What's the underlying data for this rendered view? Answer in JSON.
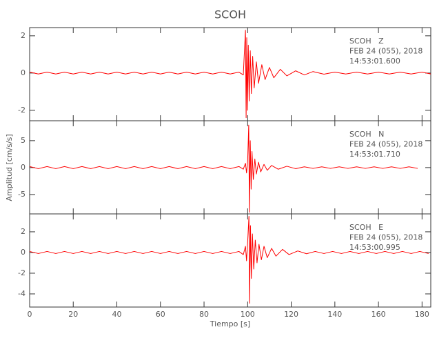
{
  "chart_data": [
    {
      "type": "line",
      "title": "SCOH",
      "annotations": [
        "SCOH   Z",
        "FEB 24 (055), 2018",
        "14:53:01.600"
      ],
      "x": [
        0,
        4,
        8,
        12,
        16,
        20,
        24,
        28,
        32,
        36,
        40,
        44,
        48,
        52,
        56,
        60,
        64,
        68,
        72,
        76,
        80,
        84,
        88,
        92,
        96,
        98,
        99,
        99.3,
        99.6,
        99.9,
        100.3,
        100.7,
        101.2,
        101.7,
        102.3,
        103,
        104,
        105,
        106.5,
        108,
        110,
        112,
        115,
        118,
        122,
        126,
        130,
        135,
        140,
        145,
        150,
        155,
        160,
        165,
        170,
        175,
        180,
        184
      ],
      "series": [
        {
          "color": "#ff0000",
          "values": [
            0.05,
            -0.05,
            0.05,
            -0.05,
            0.05,
            -0.05,
            0.05,
            -0.05,
            0.05,
            -0.05,
            0.05,
            -0.05,
            0.05,
            -0.05,
            0.05,
            -0.05,
            0.05,
            -0.05,
            0.05,
            -0.05,
            0.05,
            -0.05,
            0.05,
            -0.05,
            0.05,
            -0.1,
            2.3,
            -2.4,
            1.9,
            -2.0,
            1.5,
            -1.5,
            1.2,
            -1.1,
            0.9,
            -0.8,
            0.6,
            -0.55,
            0.45,
            -0.35,
            0.3,
            -0.25,
            0.2,
            -0.15,
            0.12,
            -0.1,
            0.08,
            -0.06,
            0.05,
            -0.05,
            0.05,
            -0.05,
            0.05,
            -0.05,
            0.05,
            -0.05,
            0.05,
            -0.05
          ]
        }
      ],
      "xlim": [
        0,
        184
      ],
      "ylim": [
        -2.56,
        2.44
      ],
      "yticks": [
        2,
        0,
        -2
      ]
    },
    {
      "type": "line",
      "ylabel": "Amplitud [cm/s/s]",
      "annotations": [
        "SCOH   N",
        "FEB 24 (055), 2018",
        "14:53:01.710"
      ],
      "x": [
        0,
        4,
        8,
        12,
        16,
        20,
        24,
        28,
        32,
        36,
        40,
        44,
        48,
        52,
        56,
        60,
        64,
        68,
        72,
        76,
        80,
        84,
        88,
        92,
        96,
        98,
        99,
        99.5,
        100,
        100.5,
        100.8,
        101.2,
        101.6,
        102,
        102.6,
        103.3,
        104,
        105,
        106,
        107.5,
        109,
        111,
        114,
        118,
        122,
        126,
        130,
        134,
        138,
        142,
        146,
        150,
        154,
        158,
        162,
        166,
        170,
        174,
        178
      ],
      "series": [
        {
          "color": "#ff0000",
          "values": [
            0.2,
            -0.2,
            0.2,
            -0.2,
            0.2,
            -0.2,
            0.2,
            -0.2,
            0.2,
            -0.2,
            0.2,
            -0.2,
            0.2,
            -0.2,
            0.2,
            -0.2,
            0.2,
            -0.2,
            0.2,
            -0.2,
            0.2,
            -0.2,
            0.2,
            -0.2,
            0.2,
            -0.3,
            0.8,
            -1.0,
            1.2,
            7.9,
            -8.3,
            5,
            -4,
            3,
            -2.2,
            1.6,
            -1.2,
            1.0,
            -0.8,
            0.6,
            -0.5,
            0.4,
            -0.3,
            0.25,
            -0.2,
            0.15,
            -0.15,
            0.15,
            -0.15,
            0.15,
            -0.15,
            0.15,
            -0.15,
            0.15,
            -0.15,
            0.15,
            -0.15,
            0.15,
            -0.15
          ]
        }
      ],
      "xlim": [
        0,
        184
      ],
      "ylim": [
        -8.6,
        8.7
      ],
      "yticks": [
        5,
        0,
        -5
      ]
    },
    {
      "type": "line",
      "xlabel": "Tiempo [s]",
      "annotations": [
        "SCOH   E",
        "FEB 24 (055), 2018",
        "14:53:00.995"
      ],
      "x": [
        0,
        4,
        8,
        12,
        16,
        20,
        24,
        28,
        32,
        36,
        40,
        44,
        48,
        52,
        56,
        60,
        64,
        68,
        72,
        76,
        80,
        84,
        88,
        92,
        96,
        98,
        99,
        99.5,
        100,
        100.6,
        100.9,
        101.3,
        101.7,
        102.2,
        102.8,
        103.5,
        104.3,
        105.2,
        106.3,
        107.5,
        109,
        111,
        113,
        116,
        119,
        123,
        127,
        131,
        135,
        139,
        143,
        147,
        151,
        155,
        159,
        163,
        167,
        171,
        175,
        179,
        183
      ],
      "series": [
        {
          "color": "#ff0000",
          "values": [
            0.1,
            -0.1,
            0.1,
            -0.1,
            0.1,
            -0.1,
            0.1,
            -0.1,
            0.1,
            -0.1,
            0.1,
            -0.1,
            0.1,
            -0.1,
            0.1,
            -0.1,
            0.1,
            -0.1,
            0.1,
            -0.1,
            0.1,
            -0.1,
            0.1,
            -0.1,
            0.1,
            -0.2,
            0.6,
            -0.8,
            1.0,
            3.5,
            -4.9,
            2.6,
            -2.5,
            1.8,
            -1.6,
            1.2,
            -1.0,
            0.8,
            -0.7,
            0.6,
            -0.5,
            0.4,
            -0.35,
            0.3,
            -0.2,
            0.15,
            -0.12,
            0.1,
            -0.1,
            0.1,
            -0.1,
            0.1,
            -0.1,
            0.1,
            -0.1,
            0.1,
            -0.1,
            0.1,
            -0.1,
            0.1,
            -0.1
          ]
        }
      ],
      "xlim": [
        0,
        184
      ],
      "ylim": [
        -5.27,
        3.73
      ],
      "yticks": [
        2,
        0,
        -2,
        -4
      ],
      "xticks": [
        0,
        20,
        40,
        60,
        80,
        100,
        120,
        140,
        160,
        180
      ]
    }
  ]
}
